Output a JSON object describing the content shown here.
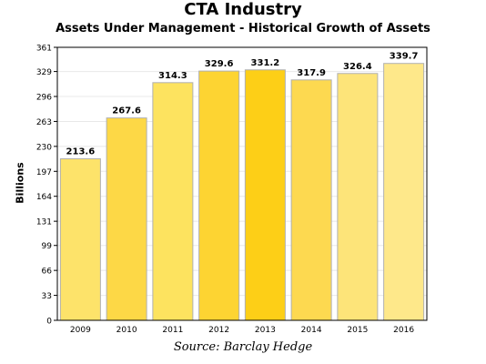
{
  "chart_data": {
    "type": "bar",
    "title": "CTA Industry",
    "subtitle": "Assets Under Management - Historical Growth of Assets",
    "xlabel": "",
    "ylabel": "Billions",
    "categories": [
      "2009",
      "2010",
      "2011",
      "2012",
      "2013",
      "2014",
      "2015",
      "2016"
    ],
    "values": [
      213.6,
      267.6,
      314.3,
      329.6,
      331.2,
      317.9,
      326.4,
      339.7
    ],
    "value_labels": [
      "213.6",
      "267.6",
      "314.3",
      "329.6",
      "331.2",
      "317.9",
      "326.4",
      "339.7"
    ],
    "yticks": [
      "0",
      "33",
      "66",
      "99",
      "131",
      "164",
      "197",
      "230",
      "263",
      "296",
      "329",
      "361"
    ],
    "ylim": [
      0,
      361
    ],
    "grid": true,
    "legend": "none",
    "bar_colors": [
      "#fde36a",
      "#fdd846",
      "#fde35f",
      "#fdd432",
      "#fdcf17",
      "#fdd950",
      "#fde479",
      "#fee88a"
    ],
    "bar_border_color": "#b0b0b0"
  },
  "source": "Source: Barclay Hedge"
}
